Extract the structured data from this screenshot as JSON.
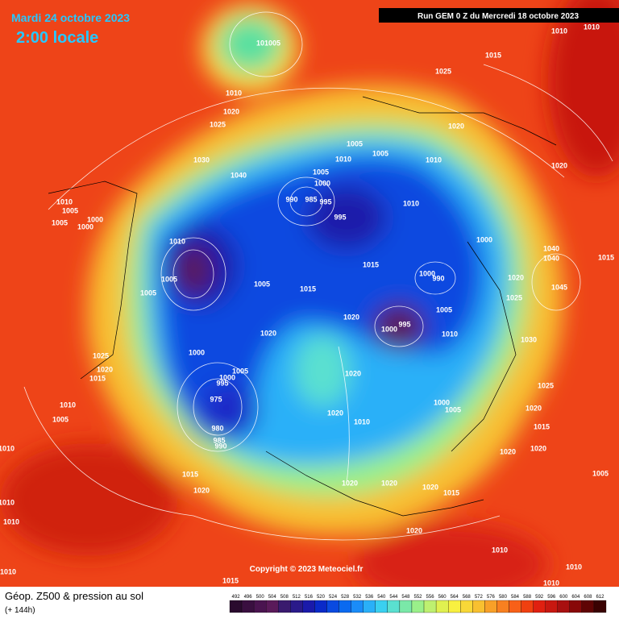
{
  "header": {
    "date": "Mardi 24 octobre 2023",
    "time": "2:00 locale",
    "run": "Run GEM 0 Z du Mercredi 18 octobre 2023"
  },
  "copyright": "Copyright © 2023 Meteociel.fr",
  "footer": {
    "title": "Géop. Z500 & pression au sol",
    "lead": "(+ 144h)"
  },
  "legend": {
    "values": [
      492,
      496,
      500,
      504,
      508,
      512,
      516,
      520,
      524,
      528,
      532,
      536,
      540,
      544,
      548,
      552,
      556,
      560,
      564,
      568,
      572,
      576,
      580,
      584,
      588,
      592,
      596,
      600,
      604,
      608,
      612
    ]
  },
  "isobars": [
    101005,
    1010,
    1020,
    1025,
    1030,
    1040,
    1005,
    1005,
    1010,
    1005,
    1000,
    990,
    985,
    995,
    995,
    1010,
    1010,
    1020,
    1025,
    1015,
    1010,
    1010,
    1020,
    1000,
    1040,
    1040,
    1015,
    1045,
    1020,
    1025,
    1000,
    990,
    1005,
    995,
    1000,
    1010,
    1030,
    1025,
    1020,
    1015,
    1020,
    1020,
    1005,
    1015,
    1015,
    1020,
    1020,
    1020,
    1010,
    1000,
    1005,
    1020,
    1020,
    1020,
    1015,
    1020,
    1010,
    1010,
    1010,
    1015,
    1015,
    1020,
    1010,
    1010,
    1010,
    1010,
    1010,
    1005,
    1010,
    1005,
    1005,
    1005,
    1020,
    1010,
    1005,
    1000,
    1000,
    1005,
    1025,
    1020,
    1015,
    1000,
    1005,
    1000,
    995,
    975,
    980,
    985,
    990
  ]
}
